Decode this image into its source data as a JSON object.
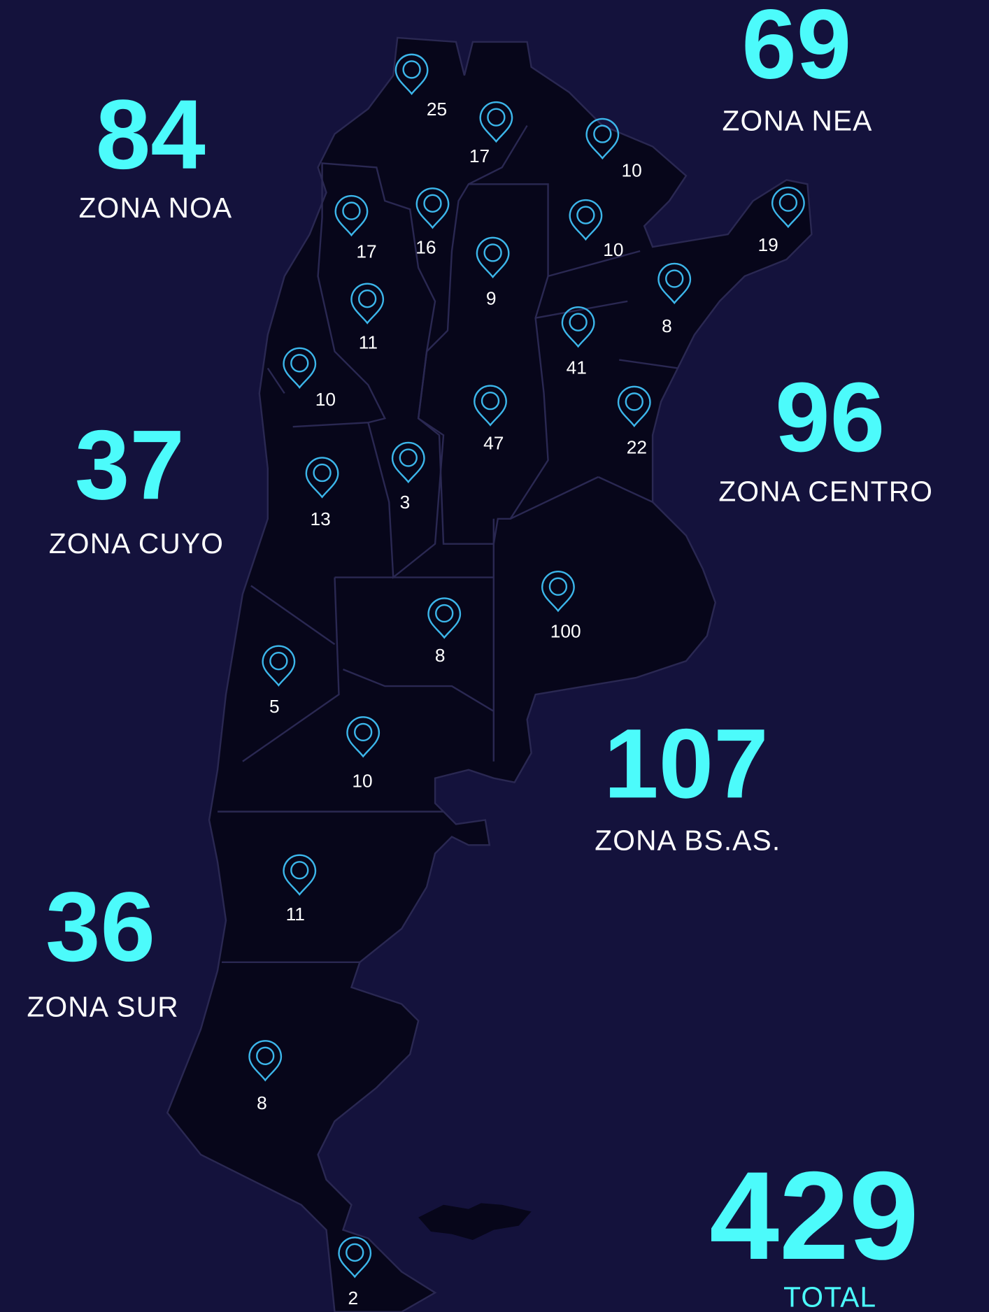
{
  "zones": [
    {
      "value": 84,
      "label": "ZONA NOA"
    },
    {
      "value": 69,
      "label": "ZONA NEA"
    },
    {
      "value": 96,
      "label": "ZONA CENTRO"
    },
    {
      "value": 37,
      "label": "ZONA CUYO"
    },
    {
      "value": 107,
      "label": "ZONA BS.AS."
    },
    {
      "value": 36,
      "label": "ZONA SUR"
    }
  ],
  "total": {
    "value": 429,
    "label": "TOTAL"
  },
  "markers": [
    25,
    17,
    10,
    19,
    17,
    16,
    10,
    9,
    8,
    11,
    41,
    10,
    47,
    22,
    13,
    3,
    100,
    8,
    5,
    10,
    11,
    8,
    2
  ]
}
